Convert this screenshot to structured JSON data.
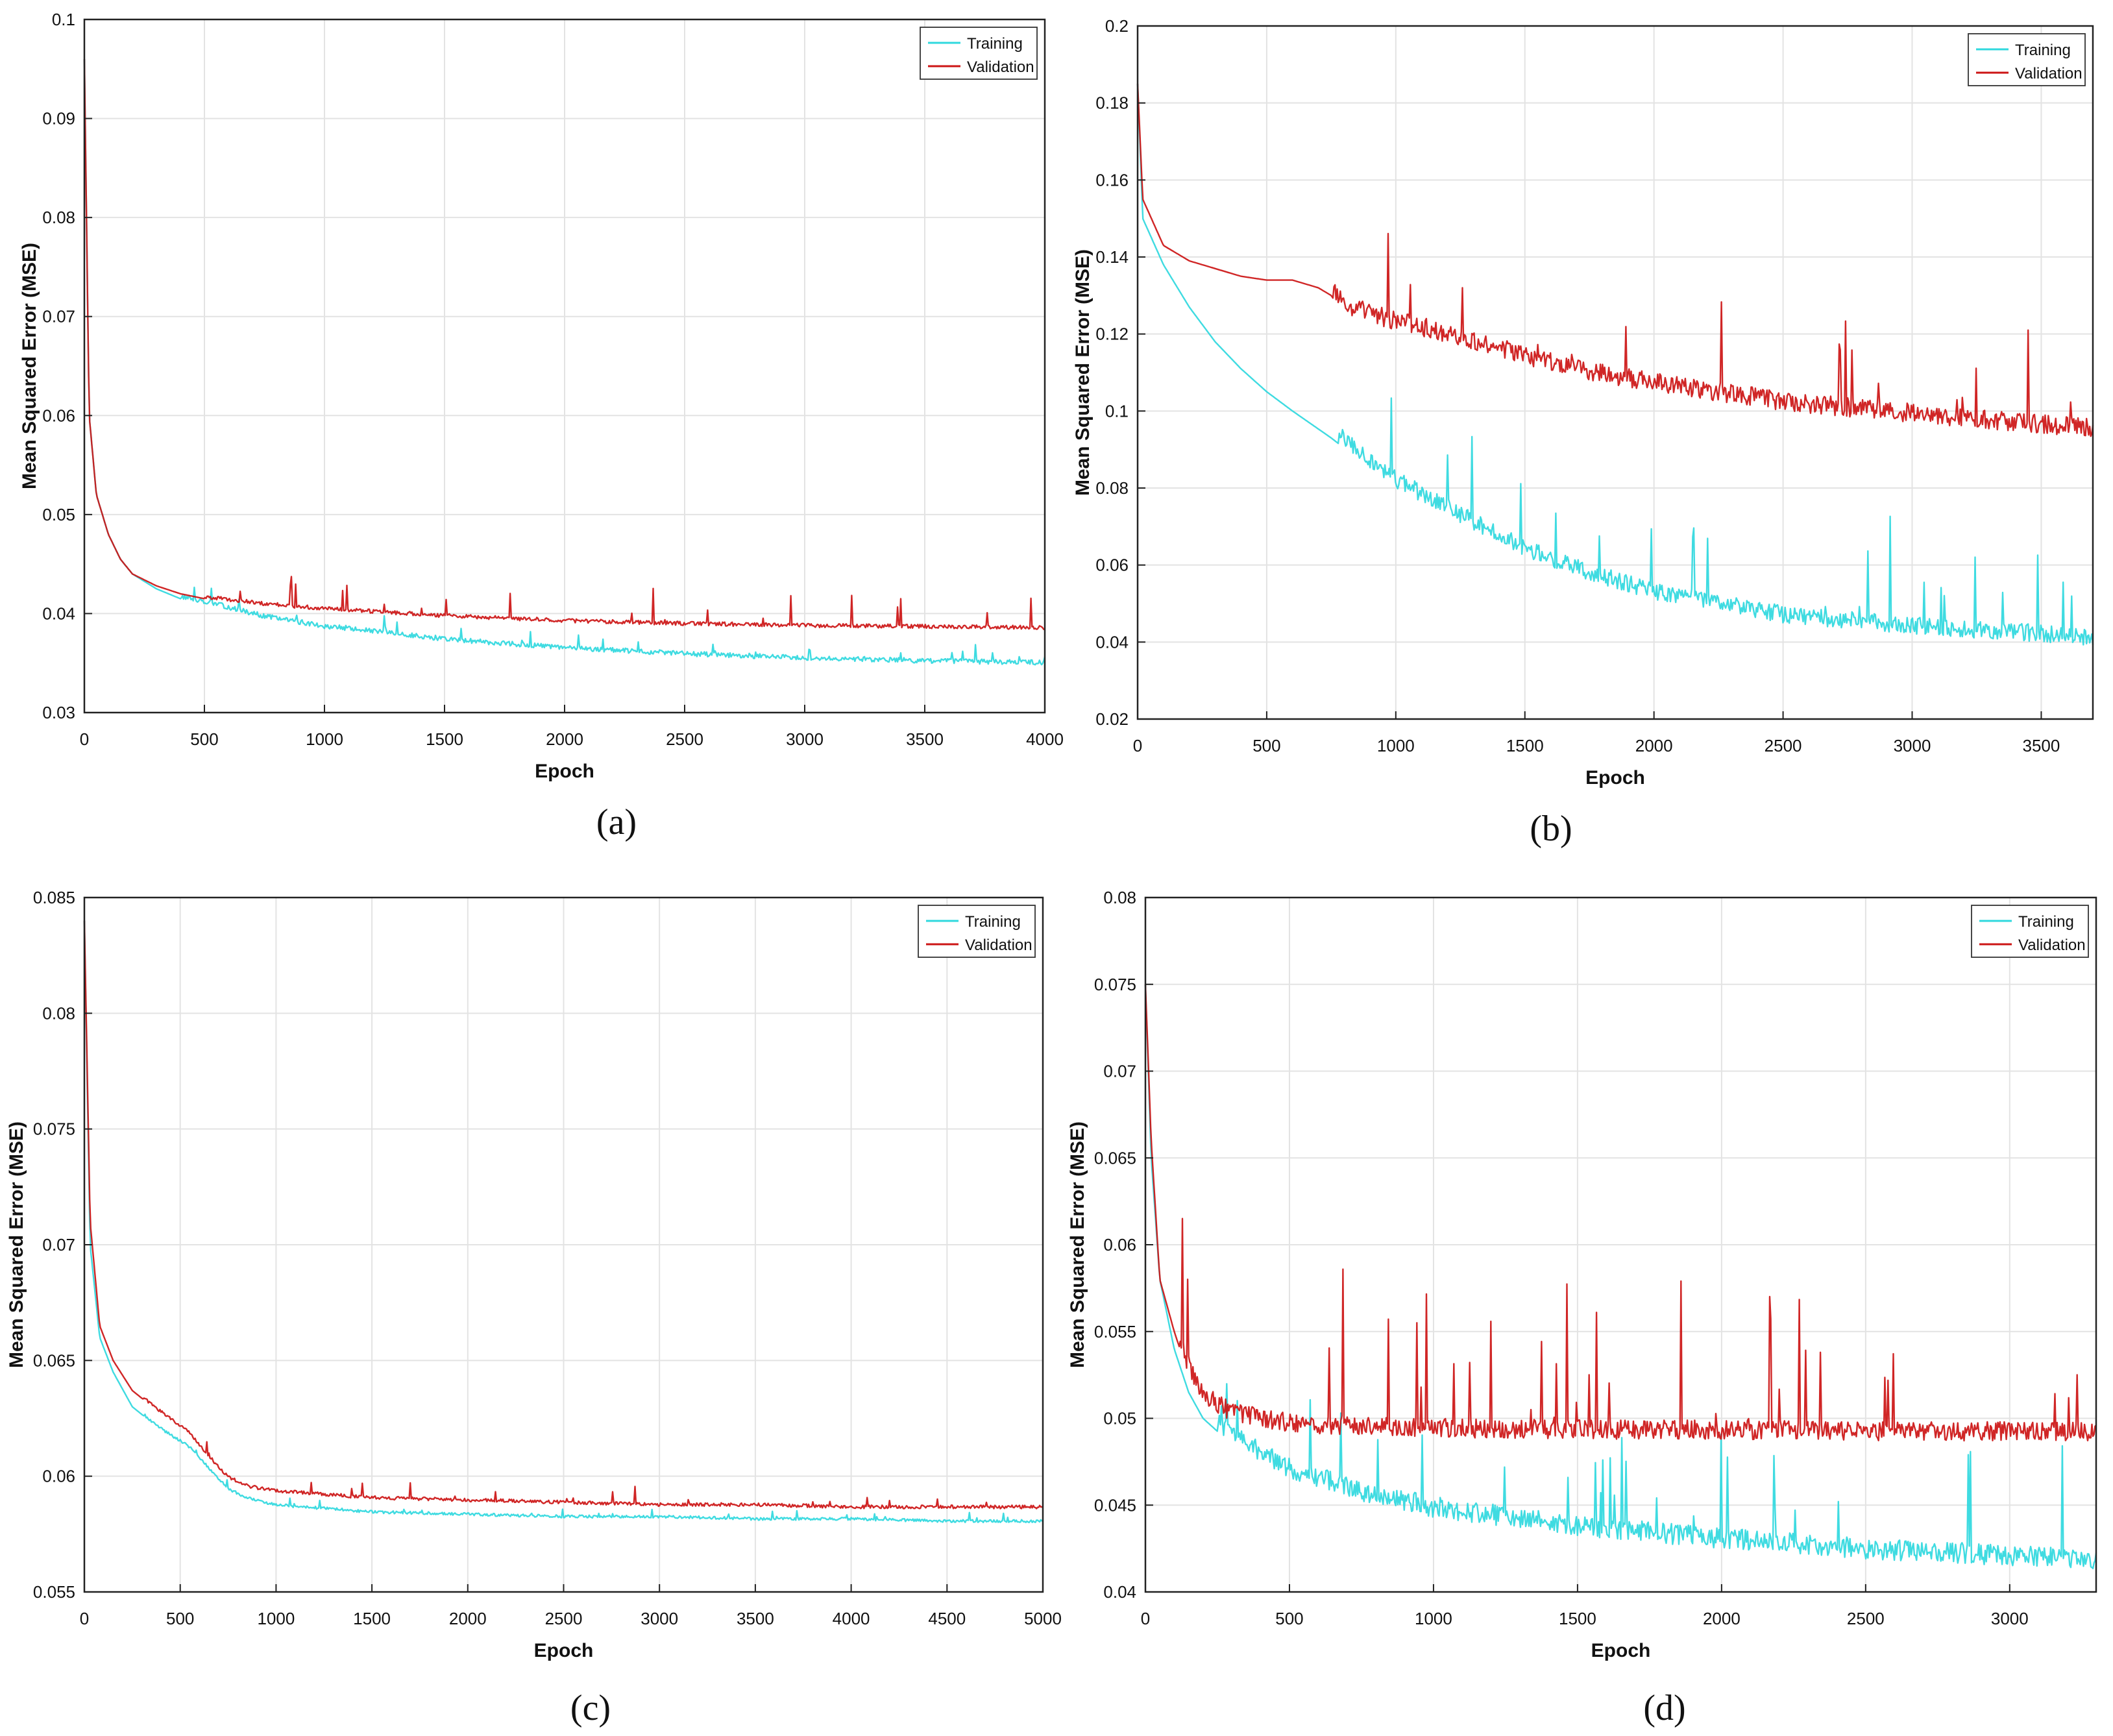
{
  "chart_data": [
    {
      "type": "line",
      "panel": "(a)",
      "title": "",
      "xlabel": "Epoch",
      "ylabel": "Mean Squared Error (MSE)",
      "xlim": [
        0,
        4000
      ],
      "ylim": [
        0.03,
        0.1
      ],
      "xticks": [
        0,
        500,
        1000,
        1500,
        2000,
        2500,
        3000,
        3500,
        4000
      ],
      "xtick_labels": [
        "0",
        "500",
        "1000",
        "1500",
        "2000",
        "2500",
        "3000",
        "3500",
        "4000"
      ],
      "yticks": [
        0.03,
        0.04,
        0.05,
        0.06,
        0.07,
        0.08,
        0.09,
        0.1
      ],
      "ytick_labels": [
        "0.03",
        "0.04",
        "0.05",
        "0.06",
        "0.07",
        "0.08",
        "0.09",
        "0.1"
      ],
      "grid": true,
      "legend_position": "top-right",
      "series": [
        {
          "name": "Training",
          "color": "#2fd8de",
          "x": [
            0,
            20,
            50,
            100,
            150,
            200,
            300,
            400,
            500,
            750,
            1000,
            1500,
            2000,
            2500,
            3000,
            3500,
            4000
          ],
          "values": [
            0.096,
            0.06,
            0.052,
            0.048,
            0.0455,
            0.044,
            0.0425,
            0.0415,
            0.041,
            0.0395,
            0.0385,
            0.0372,
            0.0363,
            0.0357,
            0.0353,
            0.035,
            0.0348
          ]
        },
        {
          "name": "Validation",
          "color": "#cc1414",
          "x": [
            0,
            20,
            50,
            100,
            150,
            200,
            300,
            400,
            500,
            750,
            1000,
            1500,
            2000,
            2500,
            3000,
            3500,
            4000
          ],
          "values": [
            0.096,
            0.06,
            0.052,
            0.048,
            0.0455,
            0.044,
            0.0428,
            0.042,
            0.0415,
            0.0408,
            0.0403,
            0.0396,
            0.0391,
            0.0388,
            0.0386,
            0.0385,
            0.0384
          ]
        }
      ]
    },
    {
      "type": "line",
      "panel": "(b)",
      "title": "",
      "xlabel": "Epoch",
      "ylabel": "Mean Squared Error (MSE)",
      "xlim": [
        0,
        3700
      ],
      "ylim": [
        0.02,
        0.2
      ],
      "xticks": [
        0,
        500,
        1000,
        1500,
        2000,
        2500,
        3000,
        3500
      ],
      "xtick_labels": [
        "0",
        "500",
        "1000",
        "1500",
        "2000",
        "2500",
        "3000",
        "3500"
      ],
      "yticks": [
        0.02,
        0.04,
        0.06,
        0.08,
        0.1,
        0.12,
        0.14,
        0.16,
        0.18,
        0.2
      ],
      "ytick_labels": [
        "0.02",
        "0.04",
        "0.06",
        "0.08",
        "0.1",
        "0.12",
        "0.14",
        "0.16",
        "0.18",
        "0.2"
      ],
      "grid": true,
      "legend_position": "top-right",
      "series": [
        {
          "name": "Training",
          "color": "#2fd8de",
          "x": [
            0,
            20,
            100,
            200,
            300,
            400,
            500,
            600,
            750,
            1000,
            1250,
            1500,
            1750,
            2000,
            2500,
            3000,
            3500,
            3700
          ],
          "values": [
            0.185,
            0.15,
            0.138,
            0.127,
            0.118,
            0.111,
            0.105,
            0.1,
            0.093,
            0.08,
            0.071,
            0.062,
            0.056,
            0.051,
            0.045,
            0.042,
            0.04,
            0.039
          ]
        },
        {
          "name": "Validation",
          "color": "#cc1414",
          "x": [
            0,
            20,
            100,
            200,
            300,
            400,
            500,
            600,
            700,
            750,
            800,
            1000,
            1250,
            1500,
            1750,
            2000,
            2500,
            3000,
            3500,
            3700
          ],
          "values": [
            0.185,
            0.155,
            0.143,
            0.139,
            0.137,
            0.135,
            0.134,
            0.134,
            0.132,
            0.13,
            0.125,
            0.121,
            0.117,
            0.112,
            0.108,
            0.105,
            0.1,
            0.097,
            0.094,
            0.093
          ]
        }
      ]
    },
    {
      "type": "line",
      "panel": "(c)",
      "title": "",
      "xlabel": "Epoch",
      "ylabel": "Mean Squared Error (MSE)",
      "xlim": [
        0,
        5000
      ],
      "ylim": [
        0.055,
        0.085
      ],
      "xticks": [
        0,
        500,
        1000,
        1500,
        2000,
        2500,
        3000,
        3500,
        4000,
        4500,
        5000
      ],
      "xtick_labels": [
        "0",
        "500",
        "1000",
        "1500",
        "2000",
        "2500",
        "3000",
        "3500",
        "4000",
        "4500",
        "5000"
      ],
      "yticks": [
        0.055,
        0.06,
        0.065,
        0.07,
        0.075,
        0.08,
        0.085
      ],
      "ytick_labels": [
        "0.055",
        "0.06",
        "0.065",
        "0.07",
        "0.075",
        "0.08",
        "0.085"
      ],
      "grid": true,
      "legend_position": "top-right",
      "series": [
        {
          "name": "Training",
          "color": "#2fd8de",
          "x": [
            0,
            30,
            80,
            150,
            250,
            400,
            550,
            650,
            750,
            850,
            1000,
            1500,
            2000,
            2500,
            3000,
            3500,
            4000,
            4500,
            5000
          ],
          "values": [
            0.084,
            0.07,
            0.066,
            0.0645,
            0.063,
            0.062,
            0.0612,
            0.0603,
            0.0594,
            0.059,
            0.0587,
            0.0584,
            0.0583,
            0.0582,
            0.0582,
            0.0581,
            0.0581,
            0.058,
            0.058
          ]
        },
        {
          "name": "Validation",
          "color": "#cc1414",
          "x": [
            0,
            30,
            80,
            150,
            250,
            400,
            550,
            650,
            750,
            850,
            1000,
            1500,
            2000,
            2500,
            3000,
            3500,
            4000,
            4500,
            5000
          ],
          "values": [
            0.084,
            0.071,
            0.0665,
            0.065,
            0.0637,
            0.0627,
            0.0618,
            0.0608,
            0.0599,
            0.0595,
            0.0593,
            0.059,
            0.0589,
            0.0588,
            0.0587,
            0.0587,
            0.0586,
            0.0586,
            0.0586
          ]
        }
      ]
    },
    {
      "type": "line",
      "panel": "(d)",
      "title": "",
      "xlabel": "Epoch",
      "ylabel": "Mean Squared Error (MSE)",
      "xlim": [
        0,
        3300
      ],
      "ylim": [
        0.04,
        0.08
      ],
      "xticks": [
        0,
        500,
        1000,
        1500,
        2000,
        2500,
        3000
      ],
      "xtick_labels": [
        "0",
        "500",
        "1000",
        "1500",
        "2000",
        "2500",
        "3000"
      ],
      "yticks": [
        0.04,
        0.045,
        0.05,
        0.055,
        0.06,
        0.065,
        0.07,
        0.075,
        0.08
      ],
      "ytick_labels": [
        "0.04",
        "0.045",
        "0.05",
        "0.055",
        "0.06",
        "0.065",
        "0.07",
        "0.075",
        "0.08"
      ],
      "grid": true,
      "legend_position": "top-right",
      "series": [
        {
          "name": "Training",
          "color": "#2fd8de",
          "x": [
            0,
            20,
            50,
            100,
            150,
            200,
            300,
            500,
            750,
            1000,
            1500,
            2000,
            2500,
            3000,
            3300
          ],
          "values": [
            0.075,
            0.065,
            0.058,
            0.054,
            0.0515,
            0.05,
            0.0485,
            0.0465,
            0.0452,
            0.0443,
            0.0432,
            0.0425,
            0.0419,
            0.0415,
            0.0413
          ]
        },
        {
          "name": "Validation",
          "color": "#cc1414",
          "x": [
            0,
            20,
            50,
            100,
            150,
            200,
            300,
            500,
            750,
            1000,
            1500,
            2000,
            2500,
            3000,
            3300
          ],
          "values": [
            0.075,
            0.066,
            0.058,
            0.055,
            0.0525,
            0.0508,
            0.0498,
            0.0492,
            0.049,
            0.0489,
            0.0488,
            0.0488,
            0.0487,
            0.0487,
            0.0487
          ]
        }
      ]
    }
  ],
  "captions": [
    "(a)",
    "(b)",
    "(c)",
    "(d)"
  ]
}
